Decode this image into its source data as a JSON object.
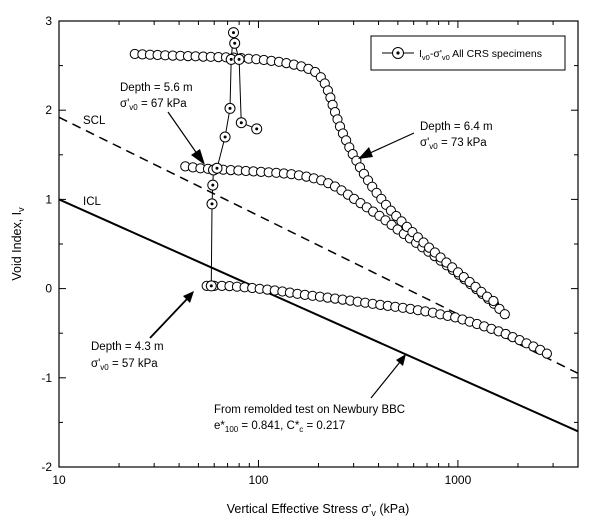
{
  "chart_data": {
    "type": "scatter",
    "xlabel": "Vertical Effective Stress σ'v (kPa)",
    "ylabel": "Void Index, Iv",
    "xscale": "log",
    "xlim": [
      10,
      4000
    ],
    "ylim": [
      -2,
      3
    ],
    "x_ticks": [
      {
        "value": 10,
        "label": "10"
      },
      {
        "value": 100,
        "label": "100"
      },
      {
        "value": 1000,
        "label": "1000"
      }
    ],
    "y_ticks": [
      {
        "value": -2,
        "label": "-2"
      },
      {
        "value": -1,
        "label": "-1"
      },
      {
        "value": 0,
        "label": "0"
      },
      {
        "value": 1,
        "label": "1"
      },
      {
        "value": 2,
        "label": "2"
      },
      {
        "value": 3,
        "label": "3"
      }
    ],
    "grid": false,
    "legend": {
      "placement": "top-right",
      "label": "Iv0-σ'v0 All CRS specimens"
    },
    "lines": [
      {
        "name": "SCL",
        "style": "dashed",
        "x": [
          10,
          4000
        ],
        "y": [
          1.92,
          -0.95
        ]
      },
      {
        "name": "ICL",
        "style": "solid",
        "x": [
          10,
          4000
        ],
        "y": [
          1.0,
          -1.6
        ]
      }
    ],
    "series": [
      {
        "name": "Depth = 4.3 m",
        "x": [
          55,
          60,
          70,
          80,
          100,
          130,
          170,
          220,
          300,
          400,
          550,
          750,
          1000,
          1300,
          1700,
          2100,
          2500,
          2800
        ],
        "y": [
          0.03,
          0.03,
          0.03,
          0.02,
          0.0,
          -0.03,
          -0.07,
          -0.1,
          -0.14,
          -0.18,
          -0.22,
          -0.27,
          -0.33,
          -0.41,
          -0.5,
          -0.59,
          -0.67,
          -0.73
        ]
      },
      {
        "name": "Depth = 5.6 m",
        "x": [
          43,
          50,
          58,
          70,
          85,
          100,
          120,
          150,
          180,
          210,
          240,
          270,
          300,
          350,
          420,
          500,
          620,
          780,
          980,
          1200,
          1500,
          1800
        ],
        "y": [
          1.37,
          1.35,
          1.34,
          1.33,
          1.32,
          1.31,
          1.3,
          1.28,
          1.25,
          1.21,
          1.15,
          1.08,
          1.01,
          0.91,
          0.79,
          0.66,
          0.51,
          0.35,
          0.18,
          0.02,
          -0.16,
          -0.33
        ]
      },
      {
        "name": "Depth = 6.4 m",
        "x": [
          24,
          30,
          40,
          55,
          75,
          100,
          130,
          160,
          190,
          210,
          225,
          240,
          260,
          290,
          330,
          380,
          450,
          550,
          700,
          900,
          1150,
          1400,
          1600
        ],
        "y": [
          2.63,
          2.62,
          2.61,
          2.6,
          2.59,
          2.57,
          2.54,
          2.5,
          2.44,
          2.35,
          2.2,
          2.0,
          1.78,
          1.55,
          1.32,
          1.11,
          0.9,
          0.7,
          0.48,
          0.27,
          0.07,
          -0.09,
          -0.18
        ]
      }
    ],
    "specimen_points": {
      "name": "Iv0-σ'v0 All CRS specimens",
      "x": [
        58,
        58.5,
        59,
        59.5,
        62,
        68,
        72,
        73,
        75,
        76,
        80,
        82,
        98
      ],
      "y": [
        0.03,
        0.95,
        1.16,
        1.33,
        1.35,
        1.7,
        2.02,
        2.57,
        2.87,
        2.75,
        2.57,
        1.86,
        1.79
      ]
    },
    "annotations": [
      {
        "id": "d56",
        "line1": "Depth = 5.6 m",
        "line2": "σ'v0 = 67 kPa"
      },
      {
        "id": "d64",
        "line1": "Depth = 6.4 m",
        "line2": "σ'v0 = 73 kPa"
      },
      {
        "id": "d43",
        "line1": "Depth = 4.3 m",
        "line2": "σ'v0 = 57 kPa"
      },
      {
        "id": "remold",
        "line1": "From remolded test on Newbury BBC",
        "line2": "e*100 = 0.841, C*c = 0.217"
      }
    ]
  }
}
